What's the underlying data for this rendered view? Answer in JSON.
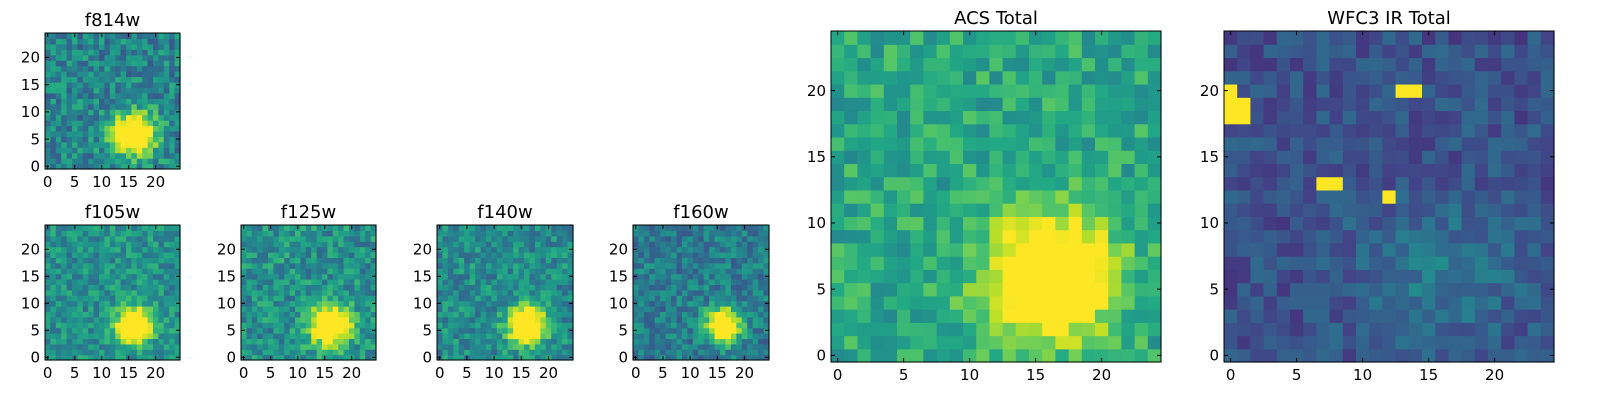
{
  "figure": {
    "panels": [
      {
        "id": "f814w",
        "title": "f814w"
      },
      {
        "id": "f105w",
        "title": "f105w"
      },
      {
        "id": "f125w",
        "title": "f125w"
      },
      {
        "id": "f140w",
        "title": "f140w"
      },
      {
        "id": "f160w",
        "title": "f160w"
      },
      {
        "id": "acs_total",
        "title": "ACS Total"
      },
      {
        "id": "wfc3_ir_total",
        "title": "WFC3 IR Total"
      }
    ]
  },
  "chart_data": [
    {
      "type": "heatmap",
      "title": "f814w",
      "size": 25,
      "colormap": "viridis",
      "xticks": [
        0,
        5,
        10,
        15,
        20
      ],
      "yticks": [
        0,
        5,
        10,
        15,
        20
      ],
      "xlim": [
        -0.5,
        24.5
      ],
      "ylim": [
        -0.5,
        24.5
      ],
      "origin": "lower",
      "source": {
        "center": [
          16,
          6
        ],
        "sigma": 2.8,
        "peak": 0.95
      },
      "noise": 0.18,
      "background": 0.45
    },
    {
      "type": "heatmap",
      "title": "f105w",
      "size": 25,
      "colormap": "viridis",
      "xticks": [
        0,
        5,
        10,
        15,
        20
      ],
      "yticks": [
        0,
        5,
        10,
        15,
        20
      ],
      "xlim": [
        -0.5,
        24.5
      ],
      "ylim": [
        -0.5,
        24.5
      ],
      "origin": "lower",
      "source": {
        "center": [
          16,
          6
        ],
        "sigma": 2.2,
        "peak": 0.95
      },
      "noise": 0.15,
      "background": 0.5
    },
    {
      "type": "heatmap",
      "title": "f125w",
      "size": 25,
      "colormap": "viridis",
      "xticks": [
        0,
        5,
        10,
        15,
        20
      ],
      "yticks": [
        0,
        5,
        10,
        15,
        20
      ],
      "xlim": [
        -0.5,
        24.5
      ],
      "ylim": [
        -0.5,
        24.5
      ],
      "origin": "lower",
      "source": {
        "center": [
          16,
          6
        ],
        "sigma": 2.6,
        "peak": 0.9
      },
      "noise": 0.17,
      "background": 0.5
    },
    {
      "type": "heatmap",
      "title": "f140w",
      "size": 25,
      "colormap": "viridis",
      "xticks": [
        0,
        5,
        10,
        15,
        20
      ],
      "yticks": [
        0,
        5,
        10,
        15,
        20
      ],
      "xlim": [
        -0.5,
        24.5
      ],
      "ylim": [
        -0.5,
        24.5
      ],
      "origin": "lower",
      "source": {
        "center": [
          16,
          6
        ],
        "sigma": 2.4,
        "peak": 0.95
      },
      "noise": 0.16,
      "background": 0.48
    },
    {
      "type": "heatmap",
      "title": "f160w",
      "size": 25,
      "colormap": "viridis",
      "xticks": [
        0,
        5,
        10,
        15,
        20
      ],
      "yticks": [
        0,
        5,
        10,
        15,
        20
      ],
      "xlim": [
        -0.5,
        24.5
      ],
      "ylim": [
        -0.5,
        24.5
      ],
      "origin": "lower",
      "source": {
        "center": [
          16,
          6
        ],
        "sigma": 2.2,
        "peak": 0.95
      },
      "noise": 0.15,
      "background": 0.42
    },
    {
      "type": "heatmap",
      "title": "ACS Total",
      "size": 25,
      "colormap": "viridis",
      "xticks": [
        0,
        5,
        10,
        15,
        20
      ],
      "yticks": [
        0,
        5,
        10,
        15,
        20
      ],
      "xlim": [
        -0.5,
        24.5
      ],
      "ylim": [
        -0.5,
        24.5
      ],
      "origin": "lower",
      "source": {
        "center": [
          16,
          6
        ],
        "sigma": 3.2,
        "peak": 0.85
      },
      "noise": 0.14,
      "background": 0.6
    },
    {
      "type": "heatmap",
      "title": "WFC3 IR Total",
      "size": 25,
      "colormap": "viridis",
      "xticks": [
        0,
        5,
        10,
        15,
        20
      ],
      "yticks": [
        0,
        5,
        10,
        15,
        20
      ],
      "xlim": [
        -0.5,
        24.5
      ],
      "ylim": [
        -0.5,
        24.5
      ],
      "origin": "lower",
      "source": {
        "center": [
          16,
          6
        ],
        "sigma": 4.0,
        "peak": 0.15
      },
      "noise": 0.1,
      "background": 0.25,
      "hot_pixels": [
        [
          0,
          18
        ],
        [
          1,
          18
        ],
        [
          0,
          19
        ],
        [
          1,
          19
        ],
        [
          0,
          20
        ],
        [
          13,
          20
        ],
        [
          14,
          20
        ],
        [
          12,
          12
        ],
        [
          7,
          13
        ],
        [
          8,
          13
        ]
      ]
    }
  ]
}
